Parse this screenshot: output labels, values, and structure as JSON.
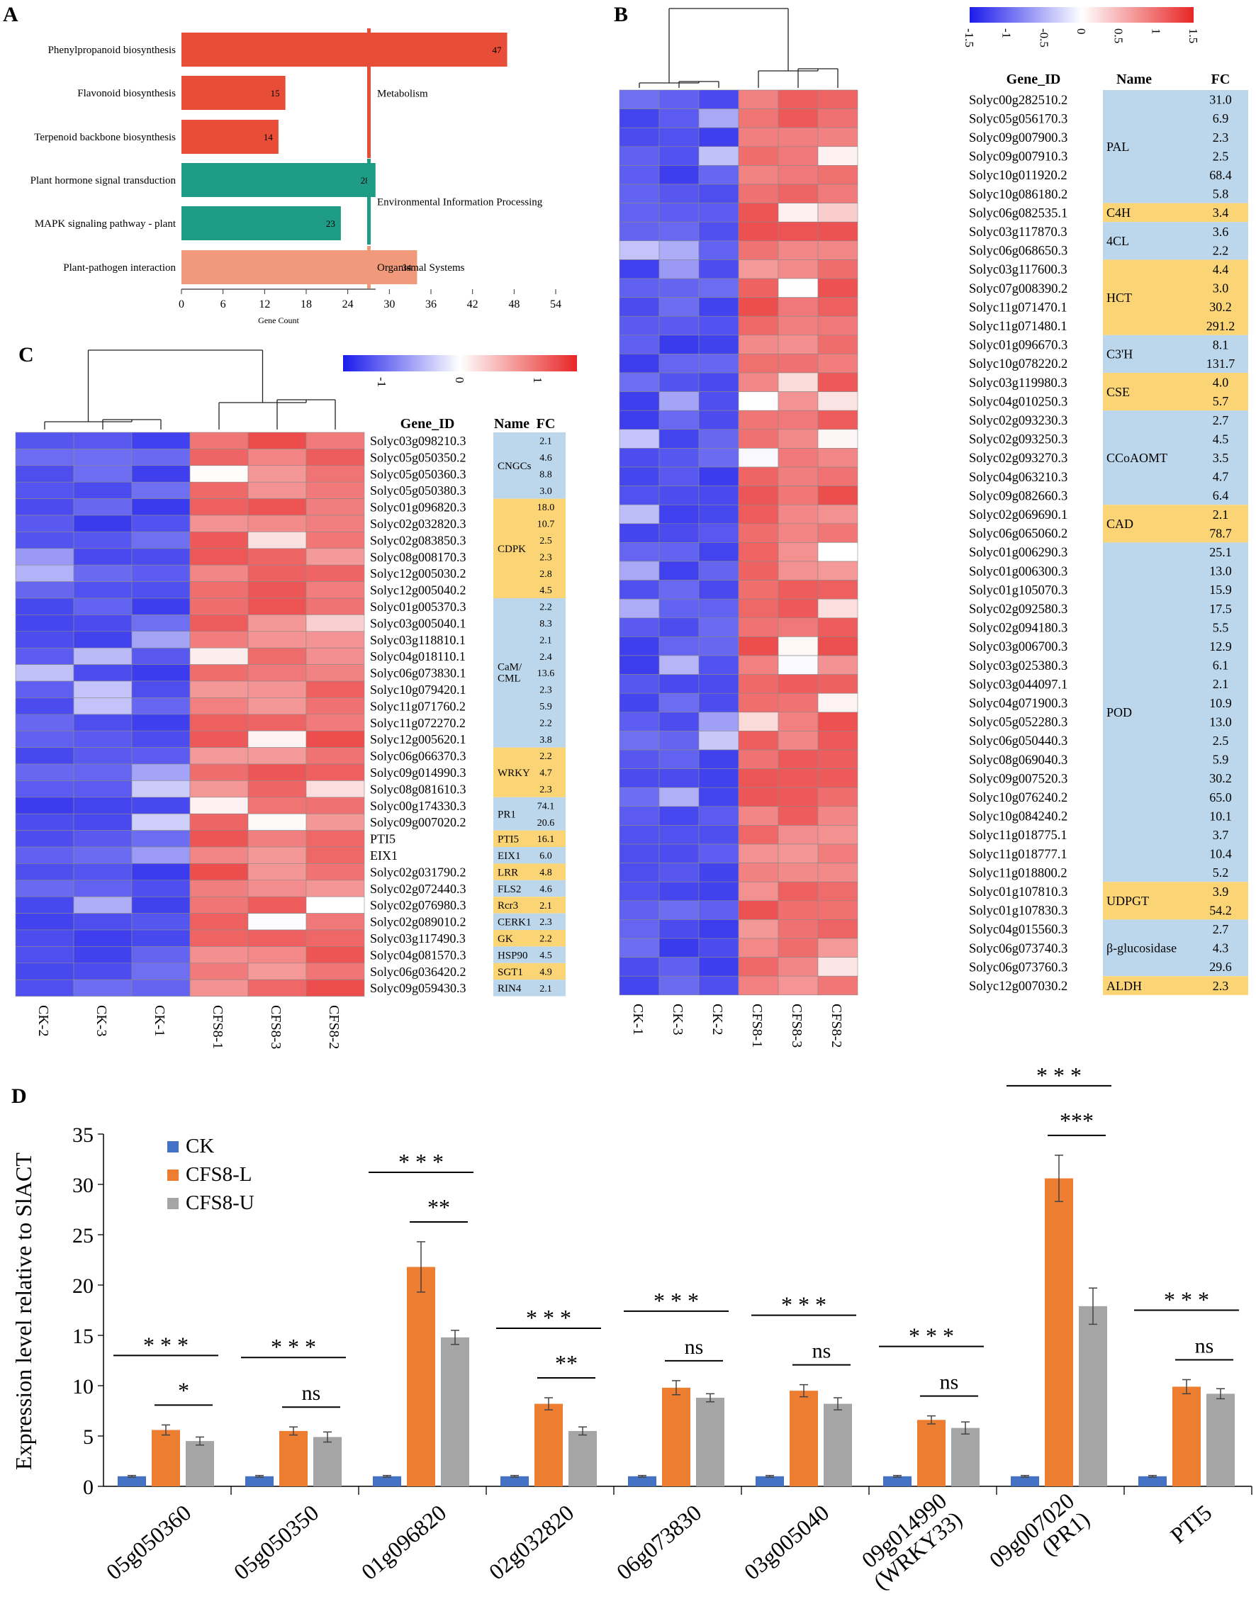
{
  "chart_data": [
    {
      "panel": "A",
      "type": "bar",
      "orientation": "horizontal",
      "categories": [
        "Phenylpropanoid biosynthesis",
        "Flavonoid biosynthesis",
        "Terpenoid backbone biosynthesis",
        "Plant hormone signal transduction",
        "MAPK signaling pathway - plant",
        "Plant-pathogen interaction"
      ],
      "values": [
        47,
        15,
        14,
        28,
        23,
        34
      ],
      "bar_colors": [
        "#e84d37",
        "#e84d37",
        "#e84d37",
        "#1f9c86",
        "#1f9c86",
        "#f19a7b"
      ],
      "groups": [
        {
          "label": "Metabolism",
          "from": 0,
          "to": 2,
          "color": "#e84d37"
        },
        {
          "label": "Environmental Information Processing",
          "from": 3,
          "to": 4,
          "color": "#1f9c86"
        },
        {
          "label": "Organismal Systems",
          "from": 5,
          "to": 5,
          "color": "#f19a7b"
        }
      ],
      "xlabel": "Gene Count",
      "xticks": [
        0,
        6,
        12,
        18,
        24,
        30,
        36,
        42,
        48,
        54
      ],
      "xlim": [
        0,
        54
      ]
    },
    {
      "panel": "B",
      "type": "heatmap",
      "legend_ticks": [
        "-1.5",
        "-1",
        "-0.5",
        "0",
        "0.5",
        "1",
        "1.5"
      ],
      "legend_range": [
        -1.5,
        1.5
      ],
      "headers": {
        "gene": "Gene_ID",
        "name": "Name",
        "fc": "FC"
      },
      "columns": [
        "CK-1",
        "CK-3",
        "CK-2",
        "CFS8-1",
        "CFS8-3",
        "CFS8-2"
      ],
      "genes": [
        "Solyc00g282510.2",
        "Solyc05g056170.3",
        "Solyc09g007900.3",
        "Solyc09g007910.3",
        "Solyc10g011920.2",
        "Solyc10g086180.2",
        "Solyc06g082535.1",
        "Solyc03g117870.3",
        "Solyc06g068650.3",
        "Solyc03g117600.3",
        "Solyc07g008390.2",
        "Solyc11g071470.1",
        "Solyc11g071480.1",
        "Solyc01g096670.3",
        "Solyc10g078220.2",
        "Solyc03g119980.3",
        "Solyc04g010250.3",
        "Solyc02g093230.3",
        "Solyc02g093250.3",
        "Solyc02g093270.3",
        "Solyc04g063210.3",
        "Solyc09g082660.3",
        "Solyc02g069690.1",
        "Solyc06g065060.2",
        "Solyc01g006290.3",
        "Solyc01g006300.3",
        "Solyc01g105070.3",
        "Solyc02g092580.3",
        "Solyc02g094180.3",
        "Solyc03g006700.3",
        "Solyc03g025380.3",
        "Solyc03g044097.1",
        "Solyc04g071900.3",
        "Solyc05g052280.3",
        "Solyc06g050440.3",
        "Solyc08g069040.3",
        "Solyc09g007520.3",
        "Solyc10g076240.2",
        "Solyc10g084240.2",
        "Solyc11g018775.1",
        "Solyc11g018777.1",
        "Solyc11g018800.2",
        "Solyc01g107810.3",
        "Solyc01g107830.3",
        "Solyc04g015560.3",
        "Solyc06g073740.3",
        "Solyc06g073760.3",
        "Solyc12g007030.2"
      ],
      "fc": [
        "31.0",
        "6.9",
        "2.3",
        "2.5",
        "68.4",
        "5.8",
        "3.4",
        "3.6",
        "2.2",
        "4.4",
        "3.0",
        "30.2",
        "291.2",
        "8.1",
        "131.7",
        "4.0",
        "5.7",
        "2.7",
        "4.5",
        "3.5",
        "4.7",
        "6.4",
        "2.1",
        "78.7",
        "25.1",
        "13.0",
        "15.9",
        "17.5",
        "5.5",
        "12.9",
        "6.1",
        "2.1",
        "10.9",
        "13.0",
        "2.5",
        "5.9",
        "30.2",
        "65.0",
        "10.1",
        "3.7",
        "10.4",
        "5.2",
        "3.9",
        "54.2",
        "2.7",
        "4.3",
        "29.6",
        "2.3"
      ],
      "name_groups": [
        {
          "name": "PAL",
          "start": 0,
          "count": 6,
          "color": "#bcd7ec"
        },
        {
          "name": "C4H",
          "start": 6,
          "count": 1,
          "color": "#fbd475"
        },
        {
          "name": "4CL",
          "start": 7,
          "count": 2,
          "color": "#bcd7ec"
        },
        {
          "name": "HCT",
          "start": 9,
          "count": 4,
          "color": "#fbd475"
        },
        {
          "name": "C3'H",
          "start": 13,
          "count": 2,
          "color": "#bcd7ec"
        },
        {
          "name": "CSE",
          "start": 15,
          "count": 2,
          "color": "#fbd475"
        },
        {
          "name": "CCoAOMT",
          "start": 17,
          "count": 5,
          "color": "#bcd7ec"
        },
        {
          "name": "CAD",
          "start": 22,
          "count": 2,
          "color": "#fbd475"
        },
        {
          "name": "POD",
          "start": 24,
          "count": 18,
          "color": "#bcd7ec"
        },
        {
          "name": "UDPGT",
          "start": 42,
          "count": 2,
          "color": "#fbd475"
        },
        {
          "name": "β-glucosidase",
          "start": 44,
          "count": 3,
          "color": "#bcd7ec"
        },
        {
          "name": "ALDH",
          "start": 47,
          "count": 1,
          "color": "#fbd475"
        }
      ]
    },
    {
      "panel": "C",
      "type": "heatmap",
      "legend_ticks": [
        "-1",
        "0",
        "1"
      ],
      "legend_range": [
        -1.5,
        1.5
      ],
      "headers": {
        "gene": "Gene_ID",
        "name": "Name",
        "fc": "FC"
      },
      "columns": [
        "CK-2",
        "CK-3",
        "CK-1",
        "CFS8-1",
        "CFS8-3",
        "CFS8-2"
      ],
      "genes": [
        "Solyc03g098210.3",
        "Solyc05g050350.2",
        "Solyc05g050360.3",
        "Solyc05g050380.3",
        "Solyc01g096820.3",
        "Solyc02g032820.3",
        "Solyc02g083850.3",
        "Solyc08g008170.3",
        "Solyc12g005030.2",
        "Solyc12g005040.2",
        "Solyc01g005370.3",
        "Solyc03g005040.1",
        "Solyc03g118810.1",
        "Solyc04g018110.1",
        "Solyc06g073830.1",
        "Solyc10g079420.1",
        "Solyc11g071760.2",
        "Solyc11g072270.2",
        "Solyc12g005620.1",
        "Solyc06g066370.3",
        "Solyc09g014990.3",
        "Solyc08g081610.3",
        "Solyc00g174330.3",
        "Solyc09g007020.2",
        "PTI5",
        "EIX1",
        "Solyc02g031790.2",
        "Solyc02g072440.3",
        "Solyc02g076980.3",
        "Solyc02g089010.2",
        "Solyc03g117490.3",
        "Solyc04g081570.3",
        "Solyc06g036420.2",
        "Solyc09g059430.3"
      ],
      "fc": [
        "2.1",
        "4.6",
        "8.8",
        "3.0",
        "18.0",
        "10.7",
        "2.5",
        "2.3",
        "2.8",
        "4.5",
        "2.2",
        "8.3",
        "2.1",
        "2.4",
        "13.6",
        "2.3",
        "5.9",
        "2.2",
        "3.8",
        "2.2",
        "4.7",
        "2.3",
        "74.1",
        "20.6",
        "16.1",
        "6.0",
        "4.8",
        "4.6",
        "2.1",
        "2.3",
        "2.2",
        "4.5",
        "4.9",
        "2.1"
      ],
      "name_groups": [
        {
          "name": "CNGCs",
          "start": 0,
          "count": 4,
          "color": "#bcd7ec"
        },
        {
          "name": "CDPK",
          "start": 4,
          "count": 6,
          "color": "#fbd475"
        },
        {
          "name": "CaM/ CML",
          "start": 10,
          "count": 9,
          "color": "#bcd7ec"
        },
        {
          "name": "WRKY",
          "start": 19,
          "count": 3,
          "color": "#fbd475"
        },
        {
          "name": "PR1",
          "start": 22,
          "count": 2,
          "color": "#bcd7ec"
        },
        {
          "name": "PTI5",
          "start": 24,
          "count": 1,
          "color": "#fbd475"
        },
        {
          "name": "EIX1",
          "start": 25,
          "count": 1,
          "color": "#bcd7ec"
        },
        {
          "name": "LRR",
          "start": 26,
          "count": 1,
          "color": "#fbd475"
        },
        {
          "name": "FLS2",
          "start": 27,
          "count": 1,
          "color": "#bcd7ec"
        },
        {
          "name": "Rcr3",
          "start": 28,
          "count": 1,
          "color": "#fbd475"
        },
        {
          "name": "CERK1",
          "start": 29,
          "count": 1,
          "color": "#bcd7ec"
        },
        {
          "name": "GK",
          "start": 30,
          "count": 1,
          "color": "#fbd475"
        },
        {
          "name": "HSP90",
          "start": 31,
          "count": 1,
          "color": "#bcd7ec"
        },
        {
          "name": "SGT1",
          "start": 32,
          "count": 1,
          "color": "#fbd475"
        },
        {
          "name": "RIN4",
          "start": 33,
          "count": 1,
          "color": "#bcd7ec"
        }
      ]
    },
    {
      "panel": "D",
      "type": "bar",
      "categories": [
        "05g050360",
        "05g050350",
        "01g096820",
        "02g032820",
        "06g073830",
        "03g005040",
        "09g014990 (WRKY33)",
        "09g007020 (PR1)",
        "PTI5"
      ],
      "category_lines": [
        [
          "05g050360"
        ],
        [
          "05g050350"
        ],
        [
          "01g096820"
        ],
        [
          "02g032820"
        ],
        [
          "06g073830"
        ],
        [
          "03g005040"
        ],
        [
          "09g014990",
          "(WRKY33)"
        ],
        [
          "09g007020",
          "(PR1)"
        ],
        [
          "PTI5"
        ]
      ],
      "series": [
        {
          "name": "CK",
          "color": "#4472c4",
          "values": [
            1,
            1,
            1,
            1,
            1,
            1,
            1,
            1,
            1
          ],
          "errors": [
            0.08,
            0.08,
            0.08,
            0.08,
            0.08,
            0.08,
            0.08,
            0.08,
            0.08
          ]
        },
        {
          "name": "CFS8-L",
          "color": "#ed7d31",
          "values": [
            5.6,
            5.5,
            21.8,
            8.2,
            9.8,
            9.5,
            6.6,
            30.6,
            9.9
          ],
          "errors": [
            0.5,
            0.4,
            2.5,
            0.6,
            0.7,
            0.6,
            0.4,
            2.3,
            0.7
          ]
        },
        {
          "name": "CFS8-U",
          "color": "#a5a5a5",
          "values": [
            4.5,
            4.9,
            14.8,
            5.5,
            8.8,
            8.2,
            5.8,
            17.9,
            9.2
          ],
          "errors": [
            0.4,
            0.5,
            0.7,
            0.4,
            0.4,
            0.6,
            0.6,
            1.8,
            0.5
          ]
        }
      ],
      "significance": [
        {
          "overall": "* * *",
          "pair": "*"
        },
        {
          "overall": "* * *",
          "pair": "ns"
        },
        {
          "overall": "* * *",
          "pair": "**"
        },
        {
          "overall": "* * *",
          "pair": "**"
        },
        {
          "overall": "* * *",
          "pair": "ns"
        },
        {
          "overall": "* * *",
          "pair": "ns"
        },
        {
          "overall": "* * *",
          "pair": "ns"
        },
        {
          "overall": "* * *",
          "pair": "***"
        },
        {
          "overall": "* * *",
          "pair": "ns"
        }
      ],
      "ylabel": "Expression level relative to SlACT",
      "ylim": [
        0,
        35
      ],
      "yticks": [
        0,
        5,
        10,
        15,
        20,
        25,
        30,
        35
      ]
    }
  ],
  "panel_labels": {
    "a": "A",
    "b": "B",
    "c": "C",
    "d": "D"
  }
}
